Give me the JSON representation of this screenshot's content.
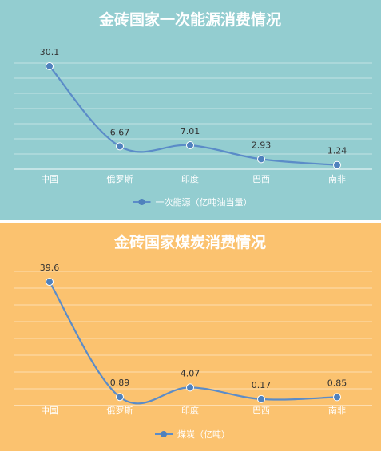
{
  "colors": {
    "panel1_bg": "#93cdd0",
    "panel2_bg": "#fbc26f",
    "line": "#5b8cc8",
    "marker": "#4f81bd",
    "grid": "#ffffff"
  },
  "chart_data": [
    {
      "type": "line",
      "title": "金砖国家一次能源消费情况",
      "categories": [
        "中国",
        "俄罗斯",
        "印度",
        "巴西",
        "南非"
      ],
      "series": [
        {
          "name": "一次能源（亿吨油当量）",
          "values": [
            30.1,
            6.67,
            7.01,
            2.93,
            1.24
          ]
        }
      ],
      "data_labels": [
        "30.1",
        "6.67",
        "7.01",
        "2.93",
        "1.24"
      ],
      "ylim": [
        0,
        35
      ],
      "grid": true,
      "legend": "bottom"
    },
    {
      "type": "line",
      "title": "金砖国家煤炭消费情况",
      "categories": [
        "中国",
        "俄罗斯",
        "印度",
        "巴西",
        "南非"
      ],
      "series": [
        {
          "name": "煤炭（亿吨）",
          "values": [
            39.6,
            0.89,
            4.07,
            0.17,
            0.85
          ]
        }
      ],
      "data_labels": [
        "39.6",
        "0.89",
        "4.07",
        "0.17",
        "0.85"
      ],
      "ylim": [
        -2,
        45
      ],
      "grid": true,
      "legend": "bottom"
    }
  ]
}
